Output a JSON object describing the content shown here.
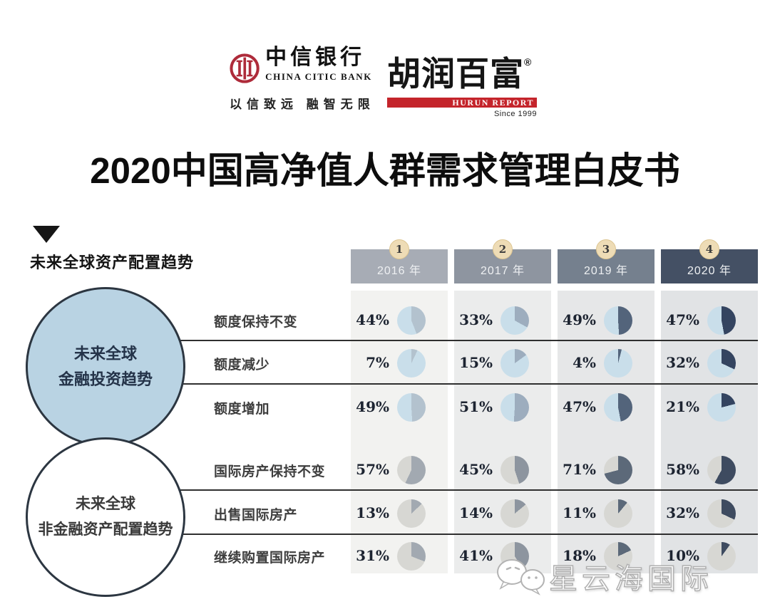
{
  "header": {
    "citic": {
      "cn": "中信银行",
      "en": "CHINA CITIC BANK",
      "slogan": "以信致远 融智无限"
    },
    "hurun": {
      "cn": "胡润百富",
      "reg": "®",
      "en": "HURUN REPORT",
      "since": "Since 1999"
    }
  },
  "title": "2020中国高净值人群需求管理白皮书",
  "section": {
    "title": "未来全球资产配置趋势"
  },
  "groups": [
    {
      "line1": "未来全球",
      "line2": "金融投资趋势"
    },
    {
      "line1": "未来全球",
      "line2": "非金融资产配置趋势"
    }
  ],
  "watermark": {
    "text": "星云海国际"
  },
  "chart_data": {
    "type": "table",
    "title": "未来全球资产配置趋势",
    "columns": [
      {
        "index": "1",
        "label": "2016 年",
        "header_color": "#a7acb5",
        "stripe_color": "#f2f2f0",
        "slice_financial": "#b3c2ce",
        "slice_nonfinancial": "#a2a9b1"
      },
      {
        "index": "2",
        "label": "2017 年",
        "header_color": "#8e95a0",
        "stripe_color": "#ebecec",
        "slice_financial": "#9dadbe",
        "slice_nonfinancial": "#8d959f"
      },
      {
        "index": "3",
        "label": "2019 年",
        "header_color": "#75808e",
        "stripe_color": "#e6e7e8",
        "slice_financial": "#53647b",
        "slice_nonfinancial": "#5c6979"
      },
      {
        "index": "4",
        "label": "2020 年",
        "header_color": "#445064",
        "stripe_color": "#e1e3e5",
        "slice_financial": "#344460",
        "slice_nonfinancial": "#3e4b60"
      }
    ],
    "rows": [
      {
        "group": "financial",
        "label": "额度保持不变",
        "values": [
          44,
          33,
          49,
          47
        ]
      },
      {
        "group": "financial",
        "label": "额度减少",
        "values": [
          7,
          15,
          4,
          32
        ]
      },
      {
        "group": "financial",
        "label": "额度增加",
        "values": [
          49,
          51,
          47,
          21
        ]
      },
      {
        "group": "nonfinancial",
        "label": "国际房产保持不变",
        "values": [
          57,
          45,
          71,
          58
        ]
      },
      {
        "group": "nonfinancial",
        "label": "出售国际房产",
        "values": [
          13,
          14,
          11,
          32
        ]
      },
      {
        "group": "nonfinancial",
        "label": "继续购置国际房产",
        "values": [
          31,
          41,
          18,
          10
        ]
      }
    ],
    "colors": {
      "pie_base_financial": "#c9deea",
      "pie_base_nonfinancial": "#d7d7d3",
      "financial_circle_fill": "#b9d3e3",
      "divider": "#2f2f2f",
      "badge_fill": "#eedcb6"
    },
    "value_unit": "%",
    "pie_start_angle": "12-oclock-clockwise"
  }
}
